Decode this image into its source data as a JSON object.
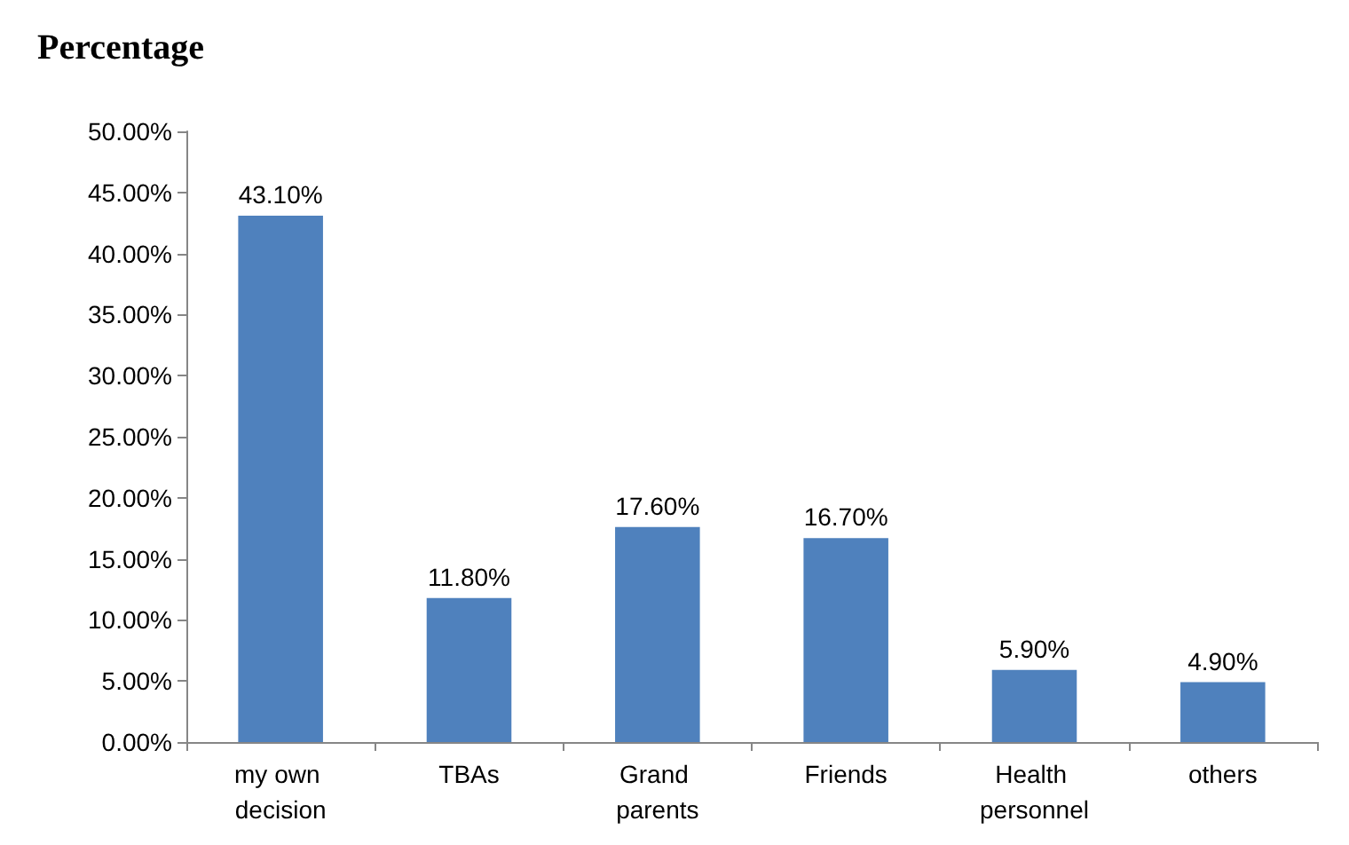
{
  "chart_data": {
    "type": "bar",
    "ylabel": "Percentage",
    "categories": [
      "my own decision",
      "TBAs",
      "Grand parents",
      "Friends",
      "Health personnel",
      "others"
    ],
    "values": [
      43.1,
      11.8,
      17.6,
      16.7,
      5.9,
      4.9
    ],
    "value_labels": [
      "43.10%",
      "11.80%",
      "17.60%",
      "16.70%",
      "5.90%",
      "4.90%"
    ],
    "color": "#4f81bd",
    "ylim": [
      0,
      50
    ],
    "yticks": [
      {
        "value": 0,
        "label": "0.00%"
      },
      {
        "value": 5,
        "label": "5.00%"
      },
      {
        "value": 10,
        "label": "10.00%"
      },
      {
        "value": 15,
        "label": "15.00%"
      },
      {
        "value": 20,
        "label": "20.00%"
      },
      {
        "value": 25,
        "label": "25.00%"
      },
      {
        "value": 30,
        "label": "30.00%"
      },
      {
        "value": 35,
        "label": "35.00%"
      },
      {
        "value": 40,
        "label": "40.00%"
      },
      {
        "value": 45,
        "label": "45.00%"
      },
      {
        "value": 50,
        "label": "50.00%"
      }
    ],
    "grid": false
  }
}
